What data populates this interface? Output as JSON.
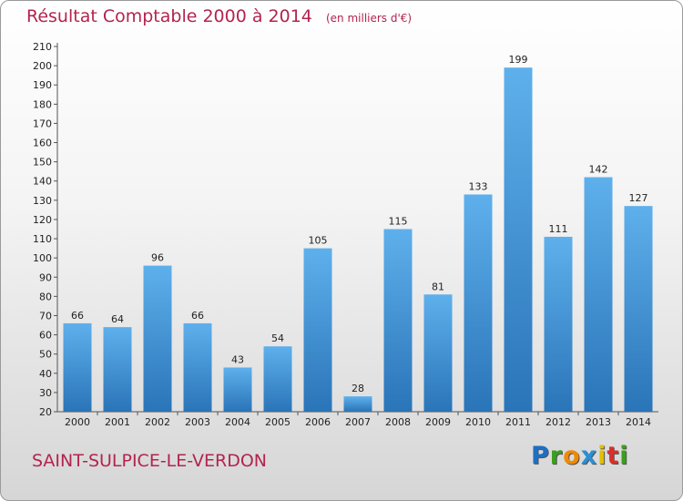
{
  "title": "Résultat Comptable 2000 à 2014",
  "unit_note": "(en milliers d'€)",
  "commune": "SAINT-SULPICE-LE-VERDON",
  "logo": {
    "text": "Proxiti",
    "letters": [
      {
        "ch": "P",
        "color": "#1f6fc2"
      },
      {
        "ch": "r",
        "color": "#3a9f1f"
      },
      {
        "ch": "o",
        "color": "#f08a00"
      },
      {
        "ch": "x",
        "color": "#2a8fd6"
      },
      {
        "ch": "i",
        "color": "#e0c000"
      },
      {
        "ch": "t",
        "color": "#d9302c"
      },
      {
        "ch": "i",
        "color": "#3a9f1f"
      }
    ]
  },
  "chart_data": {
    "type": "bar",
    "title": "Résultat Comptable 2000 à 2014",
    "categories": [
      "2000",
      "2001",
      "2002",
      "2003",
      "2004",
      "2005",
      "2006",
      "2007",
      "2008",
      "2009",
      "2010",
      "2011",
      "2012",
      "2013",
      "2014"
    ],
    "values": [
      66,
      64,
      96,
      66,
      43,
      54,
      105,
      28,
      115,
      81,
      133,
      199,
      111,
      142,
      127
    ],
    "ylim": [
      20,
      210
    ],
    "ytick_step": 10,
    "grid": false,
    "bar_color": "#3f8fd6",
    "bar_color_light": "#5eb0ec",
    "bar_color_dark": "#2a74b8"
  }
}
